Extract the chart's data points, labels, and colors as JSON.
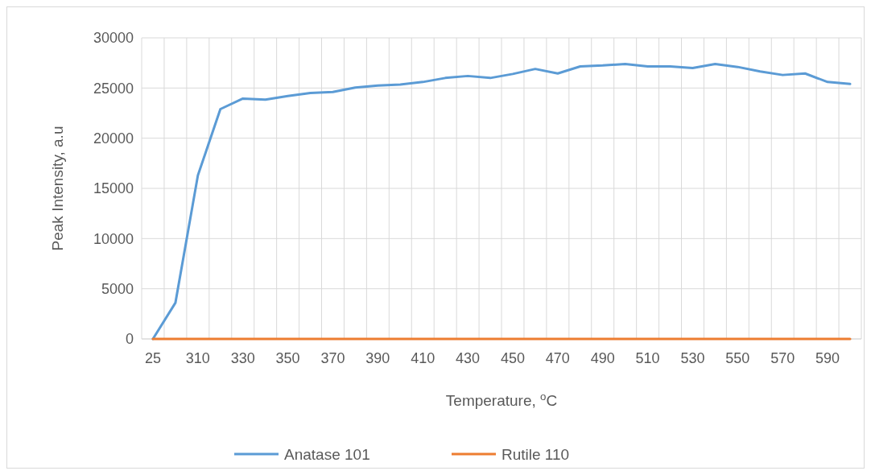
{
  "chart_data": {
    "type": "line",
    "xlabel": "Temperature, $^{o}$C",
    "ylabel": "Peak Intensity, a.u",
    "categories": [
      "25",
      null,
      "310",
      null,
      "330",
      null,
      "350",
      null,
      "370",
      null,
      "390",
      null,
      "410",
      null,
      "430",
      null,
      "450",
      null,
      "470",
      null,
      "490",
      null,
      "510",
      null,
      "530",
      null,
      "550",
      null,
      "570",
      null,
      "590",
      null
    ],
    "series": [
      {
        "name": "Anatase 101",
        "color": "#5b9bd5",
        "values": [
          0,
          3600,
          16300,
          22900,
          23950,
          23850,
          24200,
          24500,
          24600,
          25050,
          25250,
          25350,
          25600,
          26000,
          26200,
          26000,
          26400,
          26900,
          26450,
          27150,
          27250,
          27400,
          27150,
          27150,
          27000,
          27400,
          27100,
          26650,
          26300,
          26450,
          25600,
          25400
        ]
      },
      {
        "name": "Rutile 110",
        "color": "#ed7d31",
        "values": [
          0,
          0,
          0,
          0,
          0,
          0,
          0,
          0,
          0,
          0,
          0,
          0,
          0,
          0,
          0,
          0,
          0,
          0,
          0,
          0,
          0,
          0,
          0,
          0,
          0,
          0,
          0,
          0,
          0,
          0,
          0,
          0
        ]
      }
    ],
    "ylim": [
      0,
      30000
    ],
    "yticks": [
      0,
      5000,
      10000,
      15000,
      20000,
      25000,
      30000
    ],
    "grid": true,
    "legend": "bottom",
    "marker": "none",
    "line_style": "solid"
  }
}
